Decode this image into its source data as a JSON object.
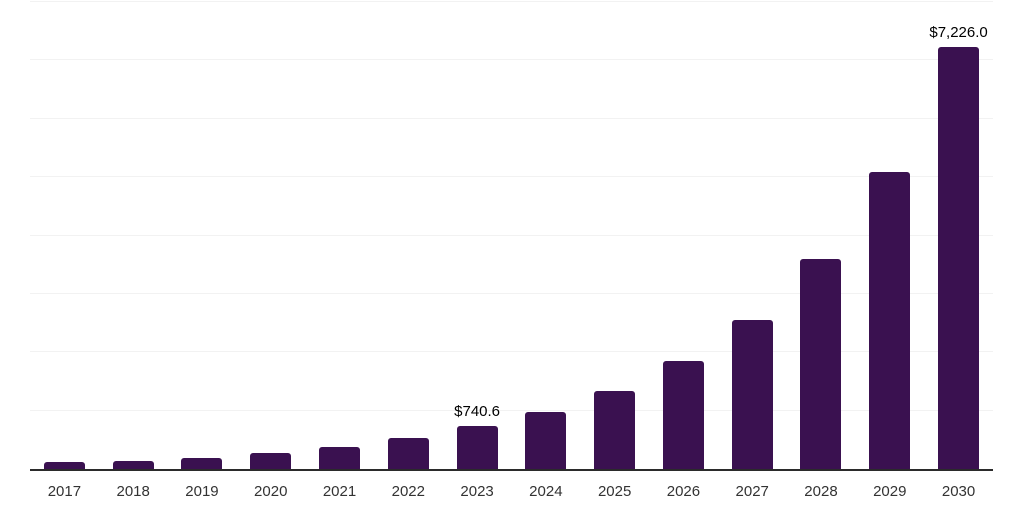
{
  "chart_data": {
    "type": "bar",
    "title": "",
    "xlabel": "",
    "ylabel": "",
    "categories": [
      "2017",
      "2018",
      "2019",
      "2020",
      "2021",
      "2022",
      "2023",
      "2024",
      "2025",
      "2026",
      "2027",
      "2028",
      "2029",
      "2030"
    ],
    "values": [
      115,
      145,
      185,
      275,
      370,
      530,
      740.6,
      980,
      1330,
      1845,
      2560,
      3590,
      5090,
      7226.0
    ],
    "data_labels": [
      "",
      "",
      "",
      "",
      "",
      "",
      "$740.6",
      "",
      "",
      "",
      "",
      "",
      "",
      "$7,226.0"
    ],
    "ylim": [
      0,
      8000
    ],
    "gridline_step": 1000,
    "grid": true,
    "legend_position": "none",
    "colors": {
      "bar": "#3A1150",
      "axis_line": "#2b2b2b",
      "gridline": "#f2f2f2",
      "value_label": "#000000",
      "tick_label": "#333333",
      "background": "#ffffff"
    }
  }
}
